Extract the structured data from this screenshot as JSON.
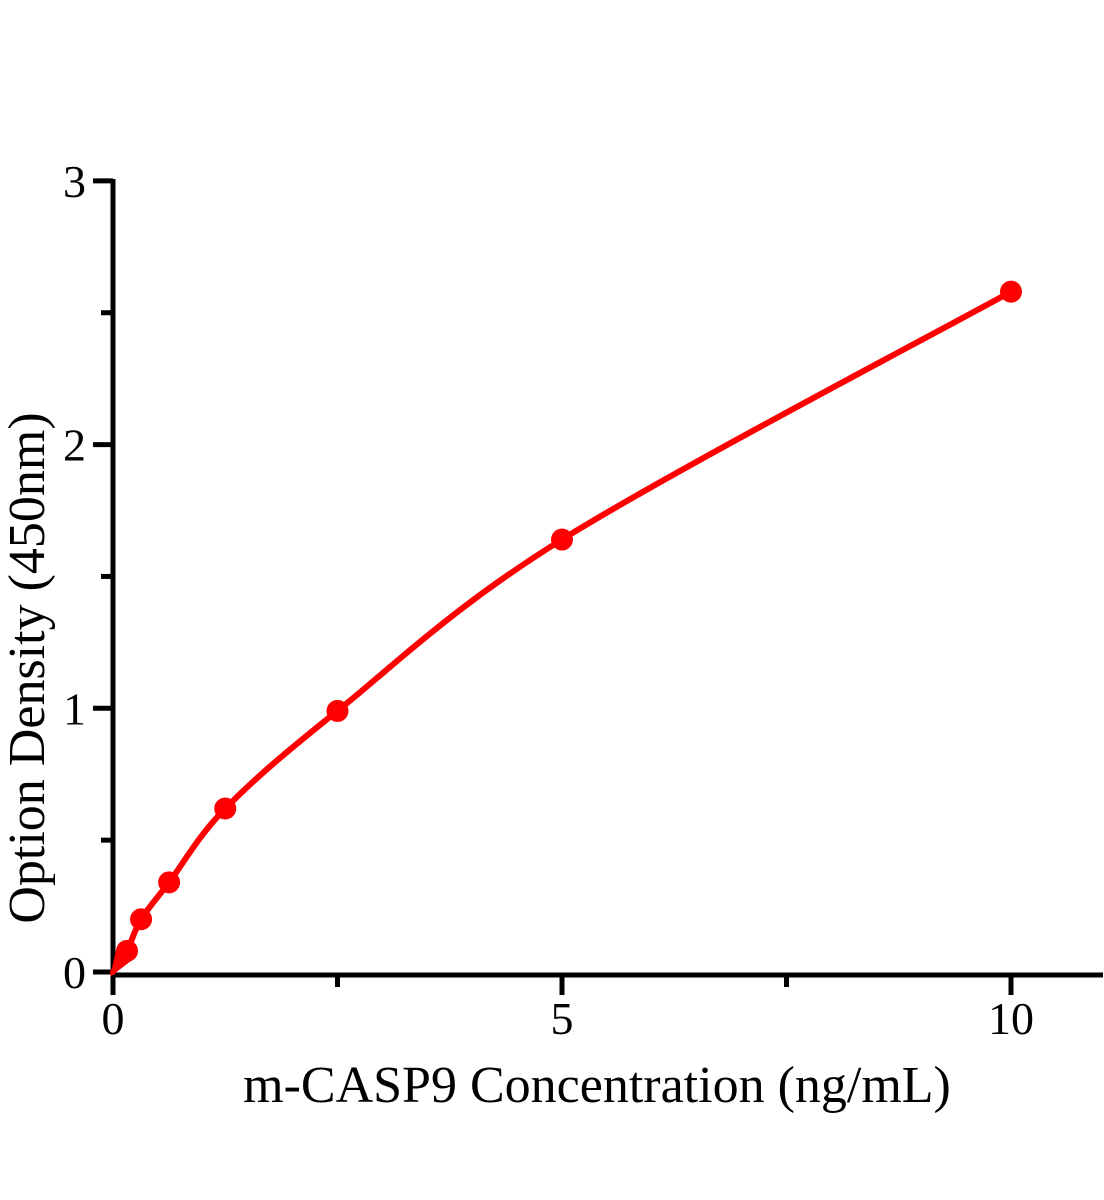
{
  "figure": {
    "background_color": "#ffffff",
    "description": "ELISA standard curve plot"
  },
  "chart_data": {
    "type": "line",
    "title": "",
    "xlabel": "m-CASP9 Concentration（ng/mL）",
    "ylabel": "Option Density（450nm）",
    "xlim": [
      0,
      11
    ],
    "ylim": [
      0,
      3
    ],
    "grid": false,
    "legend": false,
    "line_color": "#ff0000",
    "marker_color": "#ff0000",
    "axis_color": "#000000",
    "marker_style": "filled-circle",
    "points": [
      {
        "x": 0,
        "y": 0
      },
      {
        "x": 0.156,
        "y": 0.08
      },
      {
        "x": 0.3125,
        "y": 0.2
      },
      {
        "x": 0.625,
        "y": 0.34
      },
      {
        "x": 1.25,
        "y": 0.62
      },
      {
        "x": 2.5,
        "y": 0.99
      },
      {
        "x": 5,
        "y": 1.64
      },
      {
        "x": 10,
        "y": 2.58
      }
    ],
    "x_ticks": [
      {
        "value": 0,
        "label": "0"
      },
      {
        "value": 5,
        "label": "5"
      },
      {
        "value": 10,
        "label": "10"
      }
    ],
    "x_minor_ticks": [
      2.5,
      7.5
    ],
    "y_ticks": [
      {
        "value": 0,
        "label": "0"
      },
      {
        "value": 1,
        "label": "1"
      },
      {
        "value": 2,
        "label": "2"
      },
      {
        "value": 3,
        "label": "3"
      }
    ],
    "y_minor_ticks": [
      0.5,
      1.5,
      2.5
    ]
  }
}
